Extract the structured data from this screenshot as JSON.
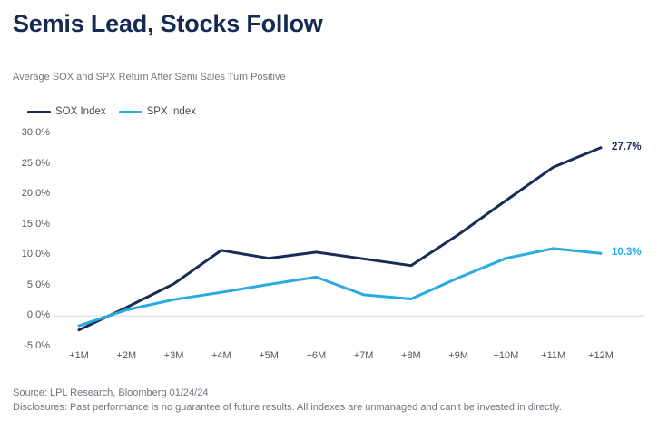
{
  "header": {
    "title": "Semis Lead, Stocks Follow",
    "subtitle": "Average SOX and SPX Return After Semi Sales Turn Positive"
  },
  "footer": {
    "source": "Source: LPL Research, Bloomberg 01/24/24",
    "disclosures": "Disclosures: Past performance is no guarantee of future results. All indexes are unmanaged and can't be invested in directly."
  },
  "colors": {
    "navy": "#182C56",
    "cyan": "#29ABE2",
    "gridline": "#D9D9D9",
    "axis_text": "#55565A"
  },
  "chart_data": {
    "type": "line",
    "title": "Average SOX and SPX Return After Semi Sales Turn Positive",
    "categories": [
      "+1M",
      "+2M",
      "+3M",
      "+4M",
      "+5M",
      "+6M",
      "+7M",
      "+8M",
      "+9M",
      "+10M",
      "+11M",
      "+12M"
    ],
    "series": [
      {
        "name": "SOX Index",
        "color": "#182C56",
        "values": [
          -2.3,
          1.4,
          5.3,
          10.8,
          9.5,
          10.5,
          9.4,
          8.3,
          13.4,
          19.0,
          24.5,
          27.7
        ],
        "end_label": "27.7%"
      },
      {
        "name": "SPX Index",
        "color": "#29ABE2",
        "values": [
          -1.6,
          1.0,
          2.7,
          3.9,
          5.2,
          6.4,
          3.5,
          2.8,
          6.3,
          9.5,
          11.1,
          10.3
        ],
        "end_label": "10.3%"
      }
    ],
    "yticks": [
      {
        "label": "30.0%",
        "value": 30
      },
      {
        "label": "25.0%",
        "value": 25
      },
      {
        "label": "20.0%",
        "value": 20
      },
      {
        "label": "15.0%",
        "value": 15
      },
      {
        "label": "10.0%",
        "value": 10
      },
      {
        "label": "5.0%",
        "value": 5
      },
      {
        "label": "0.0%",
        "value": 0
      },
      {
        "label": "-5.0%",
        "value": -5
      }
    ],
    "ylim": [
      -5,
      30
    ],
    "grid": "zero-line-only",
    "legend_position": "top-left"
  }
}
